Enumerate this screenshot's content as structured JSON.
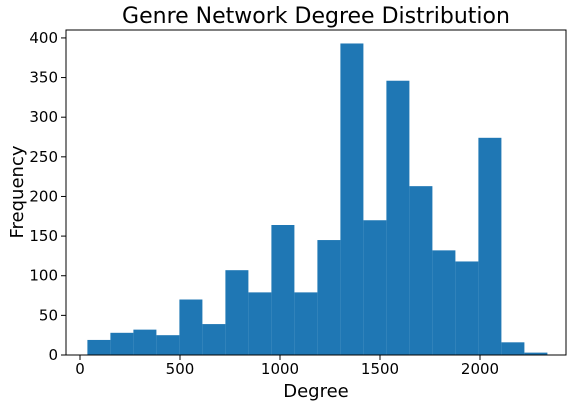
{
  "chart_data": {
    "type": "bar",
    "subtype": "histogram",
    "title": "Genre Network Degree Distribution",
    "xlabel": "Degree",
    "ylabel": "Frequency",
    "xlim": [
      -70,
      2430
    ],
    "ylim": [
      0,
      410
    ],
    "xticks": [
      0,
      500,
      1000,
      1500,
      2000
    ],
    "yticks": [
      0,
      50,
      100,
      150,
      200,
      250,
      300,
      350,
      400
    ],
    "bar_color": "#1f77b4",
    "grid": false,
    "legend": "none",
    "bin_edges": [
      37,
      152,
      267,
      382,
      497,
      612,
      727,
      842,
      957,
      1072,
      1187,
      1302,
      1417,
      1532,
      1647,
      1762,
      1877,
      1992,
      2107,
      2222,
      2337
    ],
    "values": [
      19,
      28,
      32,
      25,
      70,
      39,
      107,
      79,
      164,
      79,
      145,
      393,
      170,
      346,
      213,
      132,
      118,
      274,
      16,
      3
    ]
  }
}
